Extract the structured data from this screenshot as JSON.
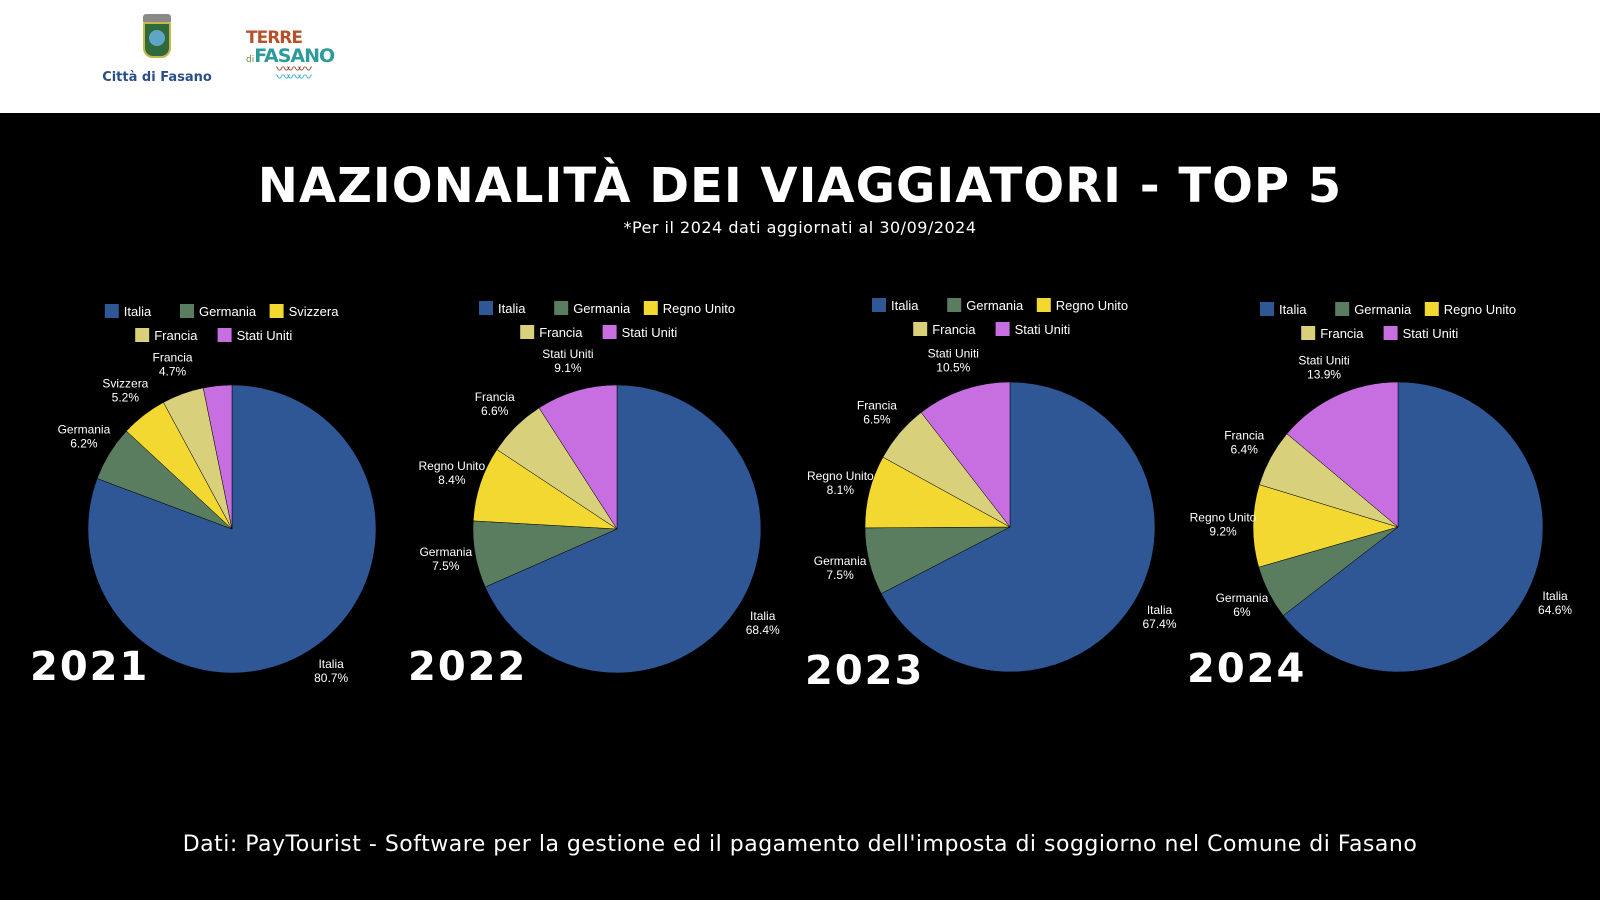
{
  "header": {
    "logo_city": "Città di Fasano",
    "logo_brand_line1": "TERRE",
    "logo_brand_di": "di",
    "logo_brand_line2": "FASANO"
  },
  "title": "NAZIONALITÀ DEI VIAGGIATORI - TOP 5",
  "subtitle": "*Per il 2024 dati aggiornati al 30/09/2024",
  "footer": "Dati: PayTourist - Software per la gestione ed il pagamento dell'imposta di soggiorno nel Comune di Fasano",
  "colors": {
    "Italia": "#2f5695",
    "Germania": "#5a7c5f",
    "Svizzera": "#f2d830",
    "Regno Unito": "#f2d830",
    "Francia": "#d8d07a",
    "Stati Uniti": "#c76fe0"
  },
  "chart_data": [
    {
      "type": "pie",
      "title": "2021",
      "categories": [
        "Italia",
        "Germania",
        "Svizzera",
        "Francia",
        "Stati Uniti"
      ],
      "values": [
        80.7,
        6.2,
        5.2,
        4.7,
        3.2
      ],
      "labels": [
        "80.7%",
        "6.2%",
        "5.2%",
        "4.7%",
        ""
      ],
      "legend": "top"
    },
    {
      "type": "pie",
      "title": "2022",
      "categories": [
        "Italia",
        "Germania",
        "Regno Unito",
        "Francia",
        "Stati Uniti"
      ],
      "values": [
        68.4,
        7.5,
        8.4,
        6.6,
        9.1
      ],
      "labels": [
        "68.4%",
        "7.5%",
        "8.4%",
        "6.6%",
        "9.1%"
      ],
      "legend": "top"
    },
    {
      "type": "pie",
      "title": "2023",
      "categories": [
        "Italia",
        "Germania",
        "Regno Unito",
        "Francia",
        "Stati Uniti"
      ],
      "values": [
        67.4,
        7.5,
        8.1,
        6.5,
        10.5
      ],
      "labels": [
        "67.4%",
        "7.5%",
        "8.1%",
        "6.5%",
        "10.5%"
      ],
      "legend": "top"
    },
    {
      "type": "pie",
      "title": "2024",
      "categories": [
        "Italia",
        "Germania",
        "Regno Unito",
        "Francia",
        "Stati Uniti"
      ],
      "values": [
        64.6,
        6,
        9.2,
        6.4,
        13.9
      ],
      "labels": [
        "64.6%",
        "6%",
        "9.2%",
        "6.4%",
        "13.9%"
      ],
      "legend": "top"
    }
  ]
}
